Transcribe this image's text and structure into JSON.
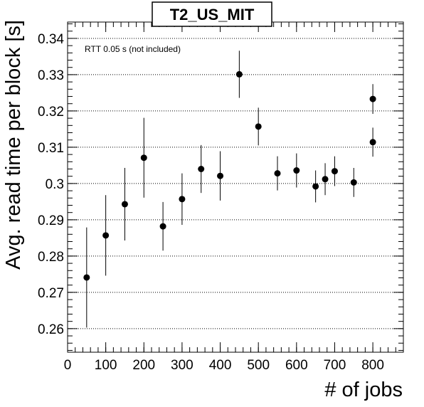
{
  "chart_data": {
    "type": "scatter",
    "title": "T2_US_MIT",
    "xlabel": "# of jobs",
    "ylabel": "Avg. read time per block [s]",
    "annotation": "RTT 0.05 s (not included)",
    "xlim": [
      0,
      880
    ],
    "ylim": [
      0.2535,
      0.3445
    ],
    "xticks": [
      0,
      100,
      200,
      300,
      400,
      500,
      600,
      700,
      800
    ],
    "yticks": [
      0.26,
      0.27,
      0.28,
      0.29,
      0.3,
      0.31,
      0.32,
      0.33,
      0.34
    ],
    "ytick_labels": [
      "0.26",
      "0.27",
      "0.28",
      "0.29",
      "0.3",
      "0.31",
      "0.32",
      "0.33",
      "0.34"
    ],
    "grid_y": true,
    "grid_x": false,
    "series": [
      {
        "marker_color": "#000000",
        "points": [
          {
            "x": 50,
            "y": 0.2741,
            "err": 0.0138
          },
          {
            "x": 100,
            "y": 0.2857,
            "err": 0.0111
          },
          {
            "x": 150,
            "y": 0.2943,
            "err": 0.01
          },
          {
            "x": 200,
            "y": 0.3071,
            "err": 0.011
          },
          {
            "x": 250,
            "y": 0.2882,
            "err": 0.0067
          },
          {
            "x": 300,
            "y": 0.2957,
            "err": 0.0071
          },
          {
            "x": 350,
            "y": 0.304,
            "err": 0.0066
          },
          {
            "x": 400,
            "y": 0.3021,
            "err": 0.0068
          },
          {
            "x": 450,
            "y": 0.3301,
            "err": 0.0065
          },
          {
            "x": 500,
            "y": 0.3157,
            "err": 0.0052
          },
          {
            "x": 550,
            "y": 0.3028,
            "err": 0.0047
          },
          {
            "x": 600,
            "y": 0.3036,
            "err": 0.0047
          },
          {
            "x": 650,
            "y": 0.2992,
            "err": 0.0044
          },
          {
            "x": 675,
            "y": 0.3012,
            "err": 0.0044
          },
          {
            "x": 700,
            "y": 0.3034,
            "err": 0.0041
          },
          {
            "x": 750,
            "y": 0.3003,
            "err": 0.004
          },
          {
            "x": 800,
            "y": 0.3114,
            "err": 0.004
          },
          {
            "x": 800,
            "y": 0.3233,
            "err": 0.0041
          }
        ]
      }
    ]
  }
}
